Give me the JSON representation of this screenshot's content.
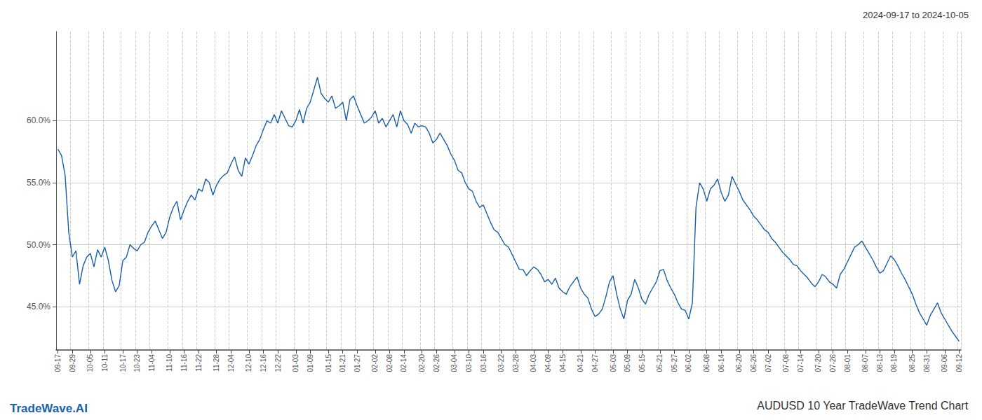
{
  "chart_data": {
    "type": "line",
    "title": "AUDUSD 10 Year TradeWave Trend Chart",
    "subtitle": "2024-09-17 to 2024-10-05",
    "annotations": [
      "TradeWave.AI"
    ],
    "color": "#1a5fa8",
    "grid": true,
    "ylim": [
      0.415,
      0.672
    ],
    "yticks": [
      {
        "value": 0.45,
        "label": "45.0%"
      },
      {
        "value": 0.5,
        "label": "50.0%"
      },
      {
        "value": 0.55,
        "label": "55.0%"
      },
      {
        "value": 0.6,
        "label": "60.0%"
      }
    ],
    "categories": [
      "09-17",
      null,
      null,
      null,
      "09-29",
      null,
      null,
      null,
      null,
      "10-05",
      null,
      null,
      null,
      "10-11",
      null,
      null,
      null,
      null,
      "10-17",
      null,
      null,
      null,
      "10-23",
      null,
      null,
      null,
      "11-04",
      null,
      null,
      null,
      null,
      "11-10",
      null,
      null,
      null,
      "11-16",
      null,
      null,
      null,
      "11-22",
      null,
      null,
      null,
      null,
      "11-28",
      null,
      null,
      null,
      "12-04",
      null,
      null,
      null,
      null,
      "12-10",
      null,
      null,
      null,
      "12-16",
      null,
      null,
      null,
      "12-22",
      null,
      null,
      null,
      null,
      "01-03",
      null,
      null,
      null,
      "01-09",
      null,
      null,
      null,
      null,
      "01-15",
      null,
      null,
      null,
      "01-21",
      null,
      null,
      null,
      "01-27",
      null,
      null,
      null,
      null,
      "02-02",
      null,
      null,
      null,
      "02-08",
      null,
      null,
      null,
      "02-14",
      null,
      null,
      null,
      null,
      "02-20",
      null,
      null,
      null,
      "02-26",
      null,
      null,
      null,
      null,
      "03-04",
      null,
      null,
      null,
      "03-10",
      null,
      null,
      null,
      "03-16",
      null,
      null,
      null,
      null,
      "03-22",
      null,
      null,
      null,
      "03-28",
      null,
      null,
      null,
      null,
      "04-03",
      null,
      null,
      null,
      "04-09",
      null,
      null,
      null,
      "04-15",
      null,
      null,
      null,
      null,
      "04-21",
      null,
      null,
      null,
      "04-27",
      null,
      null,
      null,
      null,
      "05-03",
      null,
      null,
      null,
      "05-09",
      null,
      null,
      null,
      "05-15",
      null,
      null,
      null,
      null,
      "05-21",
      null,
      null,
      null,
      "05-27",
      null,
      null,
      null,
      "06-02",
      null,
      null,
      null,
      null,
      "06-08",
      null,
      null,
      null,
      "06-14",
      null,
      null,
      null,
      null,
      "06-20",
      null,
      null,
      null,
      "06-26",
      null,
      null,
      null,
      "07-02",
      null,
      null,
      null,
      null,
      "07-08",
      null,
      null,
      null,
      "07-14",
      null,
      null,
      null,
      null,
      "07-20",
      null,
      null,
      null,
      "07-26",
      null,
      null,
      null,
      "08-01",
      null,
      null,
      null,
      null,
      "08-07",
      null,
      null,
      null,
      "08-13",
      null,
      null,
      null,
      "08-19",
      null,
      null,
      null,
      null,
      "08-25",
      null,
      null,
      null,
      "08-31",
      null,
      null,
      null,
      null,
      "09-06",
      null,
      null,
      null,
      "09-12"
    ],
    "values": [
      0.577,
      0.572,
      0.556,
      0.51,
      0.49,
      0.495,
      0.468,
      0.483,
      0.49,
      0.493,
      0.482,
      0.496,
      0.49,
      0.498,
      0.487,
      0.471,
      0.462,
      0.467,
      0.487,
      0.49,
      0.5,
      0.497,
      0.495,
      0.5,
      0.502,
      0.51,
      0.515,
      0.519,
      0.512,
      0.505,
      0.51,
      0.522,
      0.53,
      0.535,
      0.52,
      0.528,
      0.535,
      0.54,
      0.536,
      0.545,
      0.543,
      0.553,
      0.55,
      0.54,
      0.548,
      0.553,
      0.556,
      0.558,
      0.565,
      0.571,
      0.56,
      0.555,
      0.57,
      0.565,
      0.572,
      0.58,
      0.585,
      0.593,
      0.6,
      0.598,
      0.605,
      0.598,
      0.608,
      0.602,
      0.596,
      0.595,
      0.6,
      0.609,
      0.598,
      0.61,
      0.615,
      0.625,
      0.635,
      0.622,
      0.618,
      0.615,
      0.62,
      0.61,
      0.612,
      0.615,
      0.6,
      0.617,
      0.62,
      0.612,
      0.605,
      0.598,
      0.6,
      0.603,
      0.608,
      0.598,
      0.602,
      0.595,
      0.6,
      0.605,
      0.595,
      0.608,
      0.6,
      0.597,
      0.59,
      0.598,
      0.595,
      0.596,
      0.595,
      0.59,
      0.582,
      0.585,
      0.59,
      0.585,
      0.58,
      0.573,
      0.568,
      0.56,
      0.558,
      0.55,
      0.545,
      0.543,
      0.535,
      0.53,
      0.532,
      0.525,
      0.518,
      0.512,
      0.51,
      0.505,
      0.5,
      0.498,
      0.492,
      0.486,
      0.48,
      0.48,
      0.475,
      0.479,
      0.482,
      0.48,
      0.476,
      0.47,
      0.472,
      0.468,
      0.473,
      0.465,
      0.462,
      0.46,
      0.466,
      0.47,
      0.474,
      0.465,
      0.46,
      0.457,
      0.448,
      0.442,
      0.444,
      0.448,
      0.458,
      0.47,
      0.475,
      0.46,
      0.448,
      0.44,
      0.455,
      0.46,
      0.472,
      0.465,
      0.456,
      0.452,
      0.46,
      0.465,
      0.47,
      0.479,
      0.48,
      0.471,
      0.465,
      0.46,
      0.453,
      0.448,
      0.447,
      0.44,
      0.453,
      0.53,
      0.55,
      0.545,
      0.535,
      0.545,
      0.548,
      0.553,
      0.542,
      0.535,
      0.54,
      0.555,
      0.549,
      0.543,
      0.536,
      0.532,
      0.528,
      0.523,
      0.52,
      0.516,
      0.512,
      0.51,
      0.505,
      0.502,
      0.498,
      0.494,
      0.491,
      0.488,
      0.484,
      0.483,
      0.479,
      0.476,
      0.473,
      0.469,
      0.466,
      0.47,
      0.476,
      0.474,
      0.47,
      0.468,
      0.465,
      0.476,
      0.48,
      0.486,
      0.492,
      0.498,
      0.5,
      0.503,
      0.498,
      0.493,
      0.488,
      0.482,
      0.477,
      0.479,
      0.485,
      0.491,
      0.488,
      0.483,
      0.477,
      0.472,
      0.466,
      0.46,
      0.452,
      0.445,
      0.44,
      0.435,
      0.443,
      0.448,
      0.453,
      0.445,
      0.44,
      0.435,
      0.43,
      0.426,
      0.422
    ]
  }
}
